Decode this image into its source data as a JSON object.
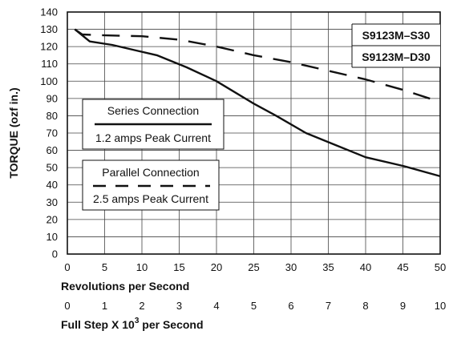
{
  "chart_data": {
    "type": "line",
    "xlabel": "Revolutions per Second",
    "xlabel2_main": "Full Step X 10",
    "xlabel2_sup": "3",
    "xlabel2_tail": " per Second",
    "ylabel": "TORQUE (ozf in.)",
    "xlim": [
      0,
      50
    ],
    "ylim": [
      0,
      140
    ],
    "x_ticks": [
      "0",
      "5",
      "10",
      "15",
      "20",
      "25",
      "30",
      "35",
      "40",
      "45",
      "50"
    ],
    "x2_ticks": [
      "0",
      "1",
      "2",
      "3",
      "4",
      "5",
      "6",
      "7",
      "8",
      "9",
      "10"
    ],
    "y_ticks": [
      "0",
      "10",
      "20",
      "30",
      "40",
      "50",
      "60",
      "70",
      "80",
      "90",
      "100",
      "110",
      "120",
      "130",
      "140"
    ],
    "grid": true,
    "models": [
      "S9123M–S30",
      "S9123M–D30"
    ],
    "legend": {
      "series_title": "Series Connection",
      "series_caption": "1.2 amps Peak Current",
      "parallel_title": "Parallel Connection",
      "parallel_caption": "2.5 amps Peak Current"
    },
    "series": [
      {
        "line_style": "solid",
        "x": [
          1,
          3,
          6,
          9,
          12,
          16,
          20,
          25,
          28,
          32,
          36,
          40,
          45,
          50
        ],
        "y": [
          130,
          123,
          121,
          118,
          115,
          108,
          100,
          87,
          80,
          70,
          63,
          56,
          51,
          45
        ]
      },
      {
        "line_style": "dashed",
        "x": [
          1,
          2,
          5,
          10,
          15,
          20,
          25,
          30,
          35,
          40,
          45,
          50
        ],
        "y": [
          130,
          127,
          126.5,
          126,
          124,
          120,
          115,
          111,
          106,
          101,
          95,
          88
        ]
      }
    ]
  }
}
